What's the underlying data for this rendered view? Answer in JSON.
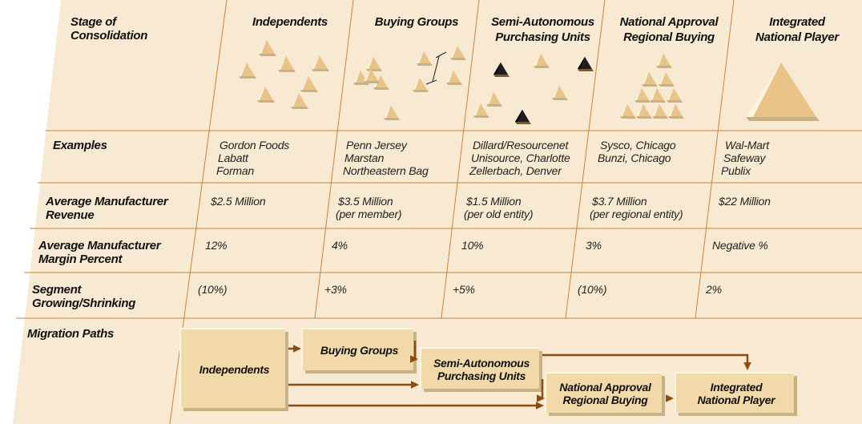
{
  "row_labels": {
    "stage_line1": "Stage of",
    "stage_line2": "Consolidation",
    "examples": "Examples",
    "revenue_line1": "Average Manufacturer",
    "revenue_line2": "Revenue",
    "margin_line1": "Average Manufacturer",
    "margin_line2": "Margin Percent",
    "segment_line1": "Segment",
    "segment_line2": "Growing/Shrinking",
    "migration": "Migration Paths"
  },
  "stages": [
    {
      "header": [
        "Independents"
      ],
      "examples": [
        "Gordon Foods",
        "Labatt",
        "Forman"
      ],
      "revenue": [
        "$2.5 Million"
      ],
      "margin": "12%",
      "segment": "(10%)"
    },
    {
      "header": [
        "Buying Groups"
      ],
      "examples": [
        "Penn Jersey",
        "Marstan",
        "Northeastern Bag"
      ],
      "revenue": [
        "$3.5 Million",
        "(per member)"
      ],
      "margin": "4%",
      "segment": "+3%"
    },
    {
      "header": [
        "Semi-Autonomous",
        "Purchasing Units"
      ],
      "examples": [
        "Dillard/Resourcenet",
        "Unisource, Charlotte",
        "Zellerbach, Denver"
      ],
      "revenue": [
        "$1.5 Million",
        "(per old entity)"
      ],
      "margin": "10%",
      "segment": "+5%"
    },
    {
      "header": [
        "National Approval",
        "Regional Buying"
      ],
      "examples": [
        "Sysco, Chicago",
        "Bunzi, Chicago"
      ],
      "revenue": [
        "$3.7 Million",
        "(per regional entity)"
      ],
      "margin": "3%",
      "segment": "(10%)"
    },
    {
      "header": [
        "Integrated",
        "National Player"
      ],
      "examples": [
        "Wal-Mart",
        "Safeway",
        "Publix"
      ],
      "revenue": [
        "$22 Million"
      ],
      "margin": "Negative %",
      "segment": "2%"
    }
  ],
  "migration_boxes": {
    "independents": "Independents",
    "buying_groups": "Buying Groups",
    "semi_line1": "Semi-Autonomous",
    "semi_line2": "Purchasing Units",
    "national_line1": "National Approval",
    "national_line2": "Regional Buying",
    "integrated_line1": "Integrated",
    "integrated_line2": "National Player"
  },
  "colors": {
    "background": "#f8e9d2",
    "grid_line": "#c6843e",
    "box_face": "#f2d9a9",
    "box_shadow": "#c9b186",
    "box_light": "#fff6e2",
    "arrow": "#8a4d12",
    "triangle": "#e9c489",
    "triangle_dark": "#1e1e1e"
  },
  "icons": {
    "stage_symbols": "triangle-cluster-icons",
    "connector": "link-bracket-icon",
    "flow": "arrow-right-icon"
  }
}
